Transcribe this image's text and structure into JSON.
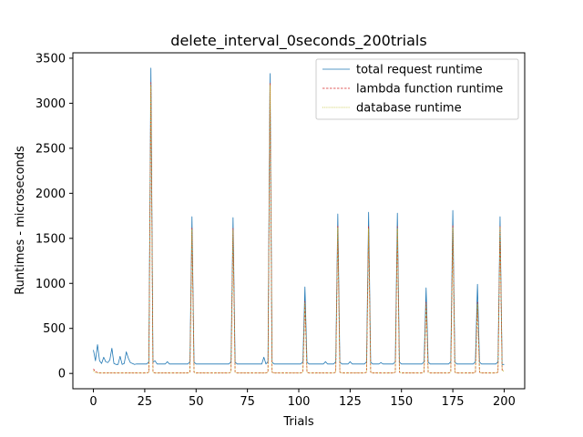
{
  "chart_data": {
    "type": "line",
    "title": "delete_interval_0seconds_200trials",
    "xlabel": "Trials",
    "ylabel": "Runtimes - microseconds",
    "xlim": [
      -10,
      210
    ],
    "ylim": [
      -170,
      3560
    ],
    "xticks": [
      0,
      25,
      50,
      75,
      100,
      125,
      150,
      175,
      200
    ],
    "yticks": [
      0,
      500,
      1000,
      1500,
      2000,
      2500,
      3000,
      3500
    ],
    "legend_position": "upper right",
    "grid": false,
    "series": [
      {
        "name": "total request runtime",
        "color": "#1f77b4",
        "style": "solid",
        "base": 105,
        "points": [
          [
            0,
            260
          ],
          [
            1,
            140
          ],
          [
            2,
            320
          ],
          [
            3,
            140
          ],
          [
            4,
            110
          ],
          [
            5,
            180
          ],
          [
            6,
            130
          ],
          [
            7,
            120
          ],
          [
            8,
            150
          ],
          [
            9,
            280
          ],
          [
            10,
            110
          ],
          [
            11,
            100
          ],
          [
            12,
            100
          ],
          [
            13,
            190
          ],
          [
            14,
            100
          ],
          [
            15,
            110
          ],
          [
            16,
            240
          ],
          [
            17,
            170
          ],
          [
            18,
            120
          ],
          [
            19,
            110
          ],
          [
            20,
            100
          ],
          [
            28,
            3390
          ],
          [
            30,
            140
          ],
          [
            36,
            130
          ],
          [
            48,
            1740
          ],
          [
            68,
            1730
          ],
          [
            83,
            180
          ],
          [
            86,
            3330
          ],
          [
            103,
            960
          ],
          [
            113,
            130
          ],
          [
            119,
            1770
          ],
          [
            125,
            130
          ],
          [
            134,
            1790
          ],
          [
            140,
            120
          ],
          [
            148,
            1780
          ],
          [
            162,
            950
          ],
          [
            175,
            1810
          ],
          [
            187,
            990
          ],
          [
            198,
            1740
          ],
          [
            199,
            100
          ],
          [
            200,
            100
          ]
        ]
      },
      {
        "name": "lambda function runtime",
        "color": "#d62728",
        "style": "dashed",
        "base": 5,
        "points": [
          [
            0,
            50
          ],
          [
            1,
            20
          ],
          [
            2,
            10
          ],
          [
            28,
            3230
          ],
          [
            48,
            1620
          ],
          [
            68,
            1610
          ],
          [
            86,
            3220
          ],
          [
            103,
            800
          ],
          [
            119,
            1640
          ],
          [
            134,
            1630
          ],
          [
            148,
            1630
          ],
          [
            162,
            790
          ],
          [
            175,
            1640
          ],
          [
            187,
            790
          ],
          [
            198,
            1640
          ],
          [
            199,
            40
          ],
          [
            200,
            30
          ]
        ]
      },
      {
        "name": "database runtime",
        "color": "#bcbd22",
        "style": "dotted",
        "base": 5,
        "points": [
          [
            0,
            30
          ],
          [
            1,
            10
          ],
          [
            28,
            3200
          ],
          [
            48,
            1600
          ],
          [
            68,
            1590
          ],
          [
            86,
            3200
          ],
          [
            103,
            780
          ],
          [
            119,
            1620
          ],
          [
            134,
            1610
          ],
          [
            148,
            1610
          ],
          [
            162,
            770
          ],
          [
            175,
            1620
          ],
          [
            187,
            770
          ],
          [
            198,
            1620
          ],
          [
            199,
            30
          ],
          [
            200,
            20
          ]
        ]
      }
    ],
    "spike_trials": [
      28,
      48,
      68,
      86,
      103,
      119,
      134,
      148,
      162,
      175,
      187,
      198
    ]
  }
}
